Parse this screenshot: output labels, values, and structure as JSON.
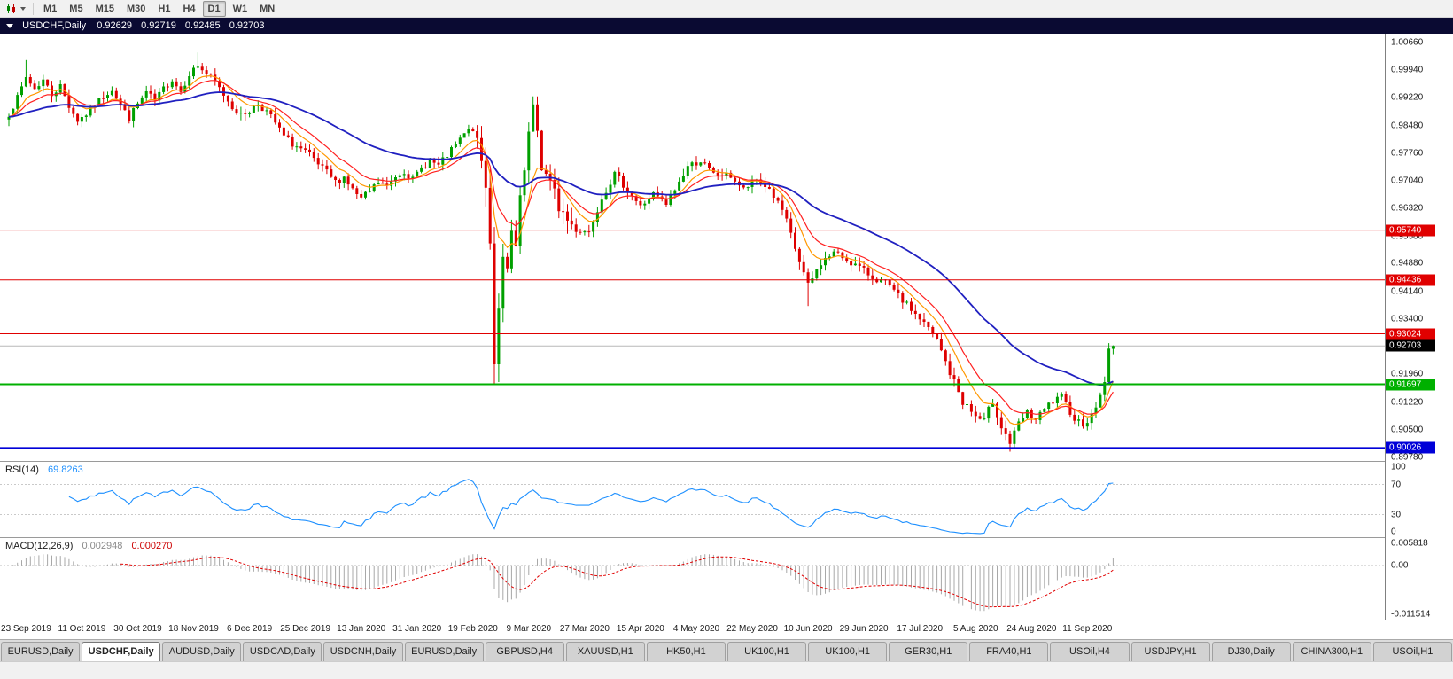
{
  "toolbar": {
    "timeframes": [
      {
        "label": "M1",
        "active": false
      },
      {
        "label": "M5",
        "active": false
      },
      {
        "label": "M15",
        "active": false
      },
      {
        "label": "M30",
        "active": false
      },
      {
        "label": "H1",
        "active": false
      },
      {
        "label": "H4",
        "active": false
      },
      {
        "label": "D1",
        "active": true
      },
      {
        "label": "W1",
        "active": false
      },
      {
        "label": "MN",
        "active": false
      }
    ]
  },
  "chart": {
    "title": "USDCHF,Daily",
    "open": "0.92629",
    "high": "0.92719",
    "low": "0.92485",
    "close": "0.92703"
  },
  "price_axis": {
    "ticks": [
      "1.00660",
      "0.99940",
      "0.99220",
      "0.98480",
      "0.97760",
      "0.97040",
      "0.96320",
      "0.95580",
      "0.94880",
      "0.94140",
      "0.93400",
      "0.92680",
      "0.91960",
      "0.91220",
      "0.90500",
      "0.89780"
    ]
  },
  "levels": [
    {
      "label": "0.95740",
      "value": 0.9574,
      "color": "#E00000",
      "width": 1
    },
    {
      "label": "0.94436",
      "value": 0.94436,
      "color": "#E00000",
      "width": 1
    },
    {
      "label": "0.93024",
      "value": 0.93024,
      "color": "#E00000",
      "width": 1
    },
    {
      "label": "0.91697",
      "value": 0.91697,
      "color": "#00B000",
      "width": 2
    },
    {
      "label": "0.90026",
      "value": 0.90026,
      "color": "#0000D8",
      "width": 2
    }
  ],
  "current_price": {
    "label": "0.92703",
    "value": 0.92703,
    "box_color": "#000000"
  },
  "rsi": {
    "name": "RSI(14)",
    "value": "69.8263",
    "color": "#1E90FF",
    "levels": [
      70,
      30
    ],
    "axis_labels": [
      {
        "v": 100,
        "label": "100"
      },
      {
        "v": 70,
        "label": "70"
      },
      {
        "v": 30,
        "label": "30"
      },
      {
        "v": 0,
        "label": "0"
      }
    ]
  },
  "macd": {
    "name": "MACD(12,26,9)",
    "value_main": "0.002948",
    "value_signal": "0.000270",
    "histogram_color": "#A8A8A8",
    "signal_color": "#E00000",
    "max": 0.005818,
    "min": -0.011514,
    "axis_labels": [
      {
        "v": 0.005818,
        "label": "0.005818"
      },
      {
        "v": 0,
        "label": "0.00"
      },
      {
        "v": -0.011514,
        "label": "-0.011514"
      }
    ]
  },
  "dates": [
    "23 Sep 2019",
    "11 Oct 2019",
    "30 Oct 2019",
    "18 Nov 2019",
    "6 Dec 2019",
    "25 Dec 2019",
    "13 Jan 2020",
    "31 Jan 2020",
    "19 Feb 2020",
    "9 Mar 2020",
    "27 Mar 2020",
    "15 Apr 2020",
    "4 May 2020",
    "22 May 2020",
    "10 Jun 2020",
    "29 Jun 2020",
    "17 Jul 2020",
    "5 Aug 2020",
    "24 Aug 2020",
    "11 Sep 2020"
  ],
  "tabs": [
    {
      "label": "EURUSD,Daily",
      "active": false
    },
    {
      "label": "USDCHF,Daily",
      "active": true
    },
    {
      "label": "AUDUSD,Daily",
      "active": false
    },
    {
      "label": "USDCAD,Daily",
      "active": false
    },
    {
      "label": "USDCNH,Daily",
      "active": false
    },
    {
      "label": "EURUSD,Daily",
      "active": false
    },
    {
      "label": "GBPUSD,H4",
      "active": false
    },
    {
      "label": "XAUUSD,H1",
      "active": false
    },
    {
      "label": "HK50,H1",
      "active": false
    },
    {
      "label": "UK100,H1",
      "active": false
    },
    {
      "label": "UK100,H1",
      "active": false
    },
    {
      "label": "GER30,H1",
      "active": false
    },
    {
      "label": "FRA40,H1",
      "active": false
    },
    {
      "label": "USOil,H4",
      "active": false
    },
    {
      "label": "USDJPY,H1",
      "active": false
    },
    {
      "label": "DJ30,Daily",
      "active": false
    },
    {
      "label": "CHINA300,H1",
      "active": false
    },
    {
      "label": "USOil,H1",
      "active": false
    }
  ],
  "colors": {
    "candle_up": "#00A000",
    "candle_down": "#DE0000",
    "ma_fast": "#FF9800",
    "ma_mid": "#FF2020",
    "ma_slow": "#2020C0",
    "titlebar_bg": "#0A0A32"
  },
  "chart_data": {
    "type": "candlestick",
    "symbol": "USDCHF",
    "timeframe": "Daily",
    "candles_count": 258,
    "seed": 7,
    "noise_base": 0.0009,
    "wick_base": 0.0013,
    "volatility_zones": [
      [
        109,
        131,
        0.0026
      ],
      [
        111,
        115,
        0.0038
      ],
      [
        180,
        188,
        0.0013
      ],
      [
        218,
        233,
        0.0013
      ]
    ],
    "ma_periods": {
      "fast": 8,
      "mid": 14,
      "slow": 45
    },
    "rsi_period": 14,
    "macd_params": [
      12,
      26,
      9
    ],
    "close_anchors": [
      [
        0,
        0.988
      ],
      [
        2,
        0.992
      ],
      [
        4,
        0.9975
      ],
      [
        6,
        0.9945
      ],
      [
        8,
        0.9968
      ],
      [
        10,
        0.993
      ],
      [
        12,
        0.9952
      ],
      [
        14,
        0.99
      ],
      [
        16,
        0.9862
      ],
      [
        18,
        0.9878
      ],
      [
        20,
        0.9902
      ],
      [
        22,
        0.9925
      ],
      [
        24,
        0.9945
      ],
      [
        26,
        0.99
      ],
      [
        28,
        0.9868
      ],
      [
        30,
        0.9905
      ],
      [
        32,
        0.9935
      ],
      [
        34,
        0.9912
      ],
      [
        36,
        0.9945
      ],
      [
        38,
        0.997
      ],
      [
        40,
        0.9938
      ],
      [
        42,
        0.9985
      ],
      [
        44,
        1.0005
      ],
      [
        46,
        0.9985
      ],
      [
        48,
        0.9962
      ],
      [
        50,
        0.993
      ],
      [
        52,
        0.9898
      ],
      [
        54,
        0.9875
      ],
      [
        56,
        0.9888
      ],
      [
        58,
        0.9905
      ],
      [
        60,
        0.9885
      ],
      [
        62,
        0.9855
      ],
      [
        64,
        0.982
      ],
      [
        66,
        0.98
      ],
      [
        68,
        0.9786
      ],
      [
        70,
        0.977
      ],
      [
        72,
        0.9745
      ],
      [
        74,
        0.9725
      ],
      [
        76,
        0.97
      ],
      [
        78,
        0.9714
      ],
      [
        80,
        0.968
      ],
      [
        82,
        0.9655
      ],
      [
        84,
        0.9676
      ],
      [
        86,
        0.97
      ],
      [
        88,
        0.9686
      ],
      [
        90,
        0.9716
      ],
      [
        92,
        0.973
      ],
      [
        94,
        0.9706
      ],
      [
        96,
        0.9736
      ],
      [
        98,
        0.9756
      ],
      [
        100,
        0.9742
      ],
      [
        102,
        0.977
      ],
      [
        104,
        0.9796
      ],
      [
        106,
        0.9826
      ],
      [
        108,
        0.984
      ],
      [
        109,
        0.979
      ],
      [
        110,
        0.9755
      ],
      [
        111,
        0.968
      ],
      [
        112,
        0.9565
      ],
      [
        113,
        0.923
      ],
      [
        114,
        0.939
      ],
      [
        115,
        0.948
      ],
      [
        116,
        0.9455
      ],
      [
        117,
        0.956
      ],
      [
        118,
        0.9525
      ],
      [
        119,
        0.964
      ],
      [
        120,
        0.9725
      ],
      [
        121,
        0.982
      ],
      [
        122,
        0.988
      ],
      [
        123,
        0.9835
      ],
      [
        124,
        0.9745
      ],
      [
        126,
        0.969
      ],
      [
        128,
        0.964
      ],
      [
        130,
        0.96
      ],
      [
        132,
        0.9575
      ],
      [
        135,
        0.957
      ],
      [
        138,
        0.966
      ],
      [
        141,
        0.972
      ],
      [
        144,
        0.968
      ],
      [
        147,
        0.9635
      ],
      [
        150,
        0.9668
      ],
      [
        153,
        0.964
      ],
      [
        156,
        0.97
      ],
      [
        158,
        0.9742
      ],
      [
        161,
        0.9756
      ],
      [
        164,
        0.972
      ],
      [
        168,
        0.9716
      ],
      [
        171,
        0.968
      ],
      [
        174,
        0.9706
      ],
      [
        177,
        0.9682
      ],
      [
        180,
        0.9625
      ],
      [
        183,
        0.9525
      ],
      [
        186,
        0.9425
      ],
      [
        189,
        0.9488
      ],
      [
        192,
        0.9516
      ],
      [
        195,
        0.9496
      ],
      [
        198,
        0.9476
      ],
      [
        201,
        0.945
      ],
      [
        204,
        0.9436
      ],
      [
        207,
        0.94
      ],
      [
        210,
        0.9366
      ],
      [
        213,
        0.933
      ],
      [
        216,
        0.9285
      ],
      [
        219,
        0.92
      ],
      [
        222,
        0.9125
      ],
      [
        225,
        0.9085
      ],
      [
        227,
        0.907
      ],
      [
        229,
        0.9128
      ],
      [
        231,
        0.906
      ],
      [
        233,
        0.9016
      ],
      [
        235,
        0.9066
      ],
      [
        237,
        0.9096
      ],
      [
        239,
        0.9076
      ],
      [
        242,
        0.9116
      ],
      [
        245,
        0.9136
      ],
      [
        248,
        0.908
      ],
      [
        250,
        0.9066
      ],
      [
        252,
        0.9086
      ],
      [
        254,
        0.914
      ],
      [
        255,
        0.918
      ],
      [
        256,
        0.9258
      ],
      [
        257,
        0.92703
      ]
    ],
    "overrides": {
      "4": {
        "high": 1.002
      },
      "44": {
        "high": 1.004
      },
      "113": {
        "low": 0.9172
      },
      "122": {
        "high": 0.9925
      },
      "186": {
        "low": 0.9375
      },
      "233": {
        "low": 0.8993
      },
      "257": {
        "open": 0.92629,
        "high": 0.92719,
        "low": 0.92485,
        "close": 0.92703
      }
    }
  }
}
